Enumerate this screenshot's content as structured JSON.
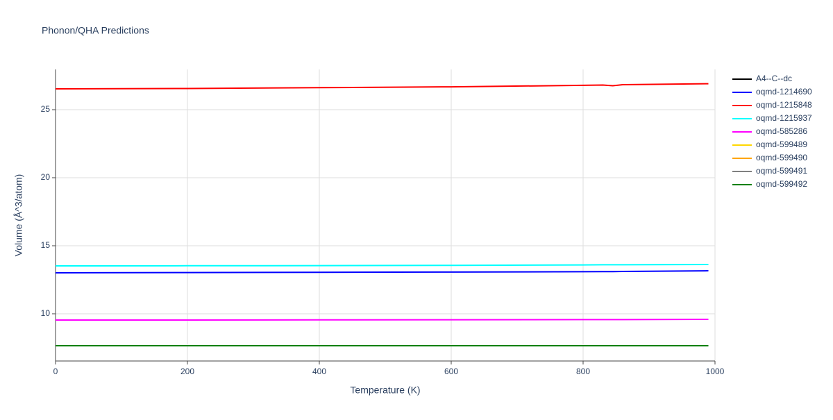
{
  "chart_data": {
    "type": "line",
    "title": "Phonon/QHA Predictions",
    "x_label": "Temperature (K)",
    "y_label": "Volume (Å^3/atom)",
    "x": [
      0,
      200,
      400,
      600,
      800,
      830,
      845,
      860,
      990
    ],
    "series": [
      {
        "name": "A4--C--dc",
        "color": "#000000",
        "values": [
          7.65,
          7.65,
          7.65,
          7.65,
          7.65,
          7.65,
          7.65,
          7.65,
          7.65
        ]
      },
      {
        "name": "oqmd-1214690",
        "color": "#0000ff",
        "values": [
          13.01,
          13.03,
          13.05,
          13.07,
          13.09,
          13.1,
          13.1,
          13.11,
          13.16
        ]
      },
      {
        "name": "oqmd-1215848",
        "color": "#ff0000",
        "values": [
          26.53,
          26.56,
          26.62,
          26.68,
          26.79,
          26.81,
          26.76,
          26.84,
          26.91
        ]
      },
      {
        "name": "oqmd-1215937",
        "color": "#00ffff",
        "values": [
          13.52,
          13.53,
          13.54,
          13.56,
          13.59,
          13.6,
          13.6,
          13.6,
          13.62
        ]
      },
      {
        "name": "oqmd-585286",
        "color": "#ff00ff",
        "values": [
          9.54,
          9.54,
          9.55,
          9.56,
          9.57,
          9.57,
          9.57,
          9.57,
          9.59
        ]
      },
      {
        "name": "oqmd-599489",
        "color": "#ffd700",
        "values": [
          7.65,
          7.65,
          7.65,
          7.65,
          7.65,
          7.65,
          7.65,
          7.65,
          7.65
        ]
      },
      {
        "name": "oqmd-599490",
        "color": "#ffa500",
        "values": [
          7.65,
          7.65,
          7.65,
          7.65,
          7.65,
          7.65,
          7.65,
          7.65,
          7.65
        ]
      },
      {
        "name": "oqmd-599491",
        "color": "#808080",
        "values": [
          7.65,
          7.65,
          7.65,
          7.65,
          7.65,
          7.65,
          7.65,
          7.65,
          7.65
        ]
      },
      {
        "name": "oqmd-599492",
        "color": "#008000",
        "values": [
          7.65,
          7.65,
          7.65,
          7.65,
          7.65,
          7.65,
          7.65,
          7.65,
          7.65
        ]
      }
    ],
    "xlim": [
      0,
      1000
    ],
    "xticks": [
      0,
      200,
      400,
      600,
      800,
      1000
    ],
    "ylim": [
      6.53,
      27.96
    ],
    "yticks": [
      10,
      15,
      20,
      25
    ],
    "grid": true,
    "legend": "right"
  }
}
